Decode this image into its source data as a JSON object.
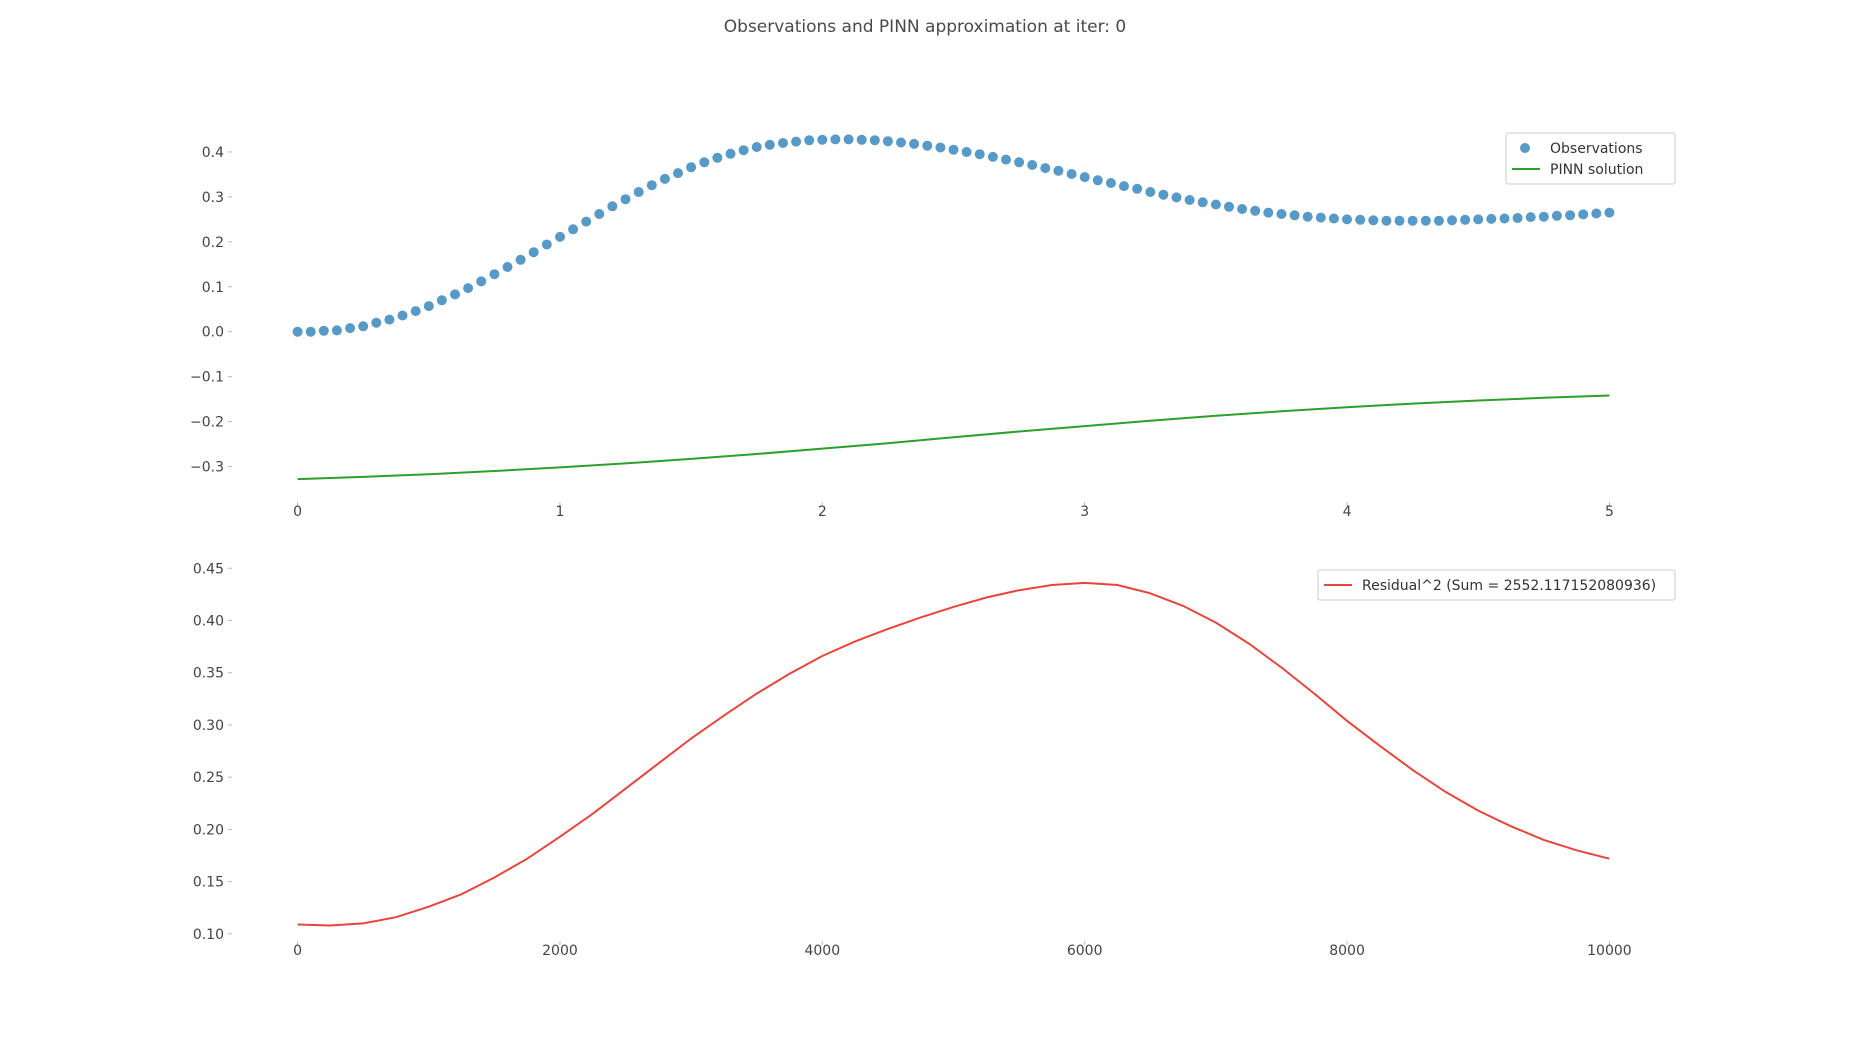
{
  "figure": {
    "suptitle": "Observations and PINN approximation at iter: 0"
  },
  "chart_data": [
    {
      "type": "scatter+line",
      "title": "",
      "xlabel": "",
      "ylabel": "",
      "xlim": [
        -0.25,
        5.25
      ],
      "ylim": [
        -0.37,
        0.46
      ],
      "grid": false,
      "legend_position": "top-right",
      "xticks": [
        0,
        1,
        2,
        3,
        4,
        5
      ],
      "yticks": [
        -0.3,
        -0.2,
        -0.1,
        0.0,
        0.1,
        0.2,
        0.3,
        0.4
      ],
      "ytick_decimals": 1,
      "series": [
        {
          "name": "Observations",
          "kind": "scatter",
          "color": "#1f77b4",
          "points": [
            [
              0.0,
              0.0
            ],
            [
              0.05,
              0.0
            ],
            [
              0.1,
              0.002
            ],
            [
              0.15,
              0.003
            ],
            [
              0.2,
              0.008
            ],
            [
              0.25,
              0.012
            ],
            [
              0.3,
              0.02
            ],
            [
              0.35,
              0.027
            ],
            [
              0.4,
              0.036
            ],
            [
              0.45,
              0.046
            ],
            [
              0.5,
              0.057
            ],
            [
              0.55,
              0.07
            ],
            [
              0.6,
              0.083
            ],
            [
              0.65,
              0.097
            ],
            [
              0.7,
              0.112
            ],
            [
              0.75,
              0.128
            ],
            [
              0.8,
              0.144
            ],
            [
              0.85,
              0.16
            ],
            [
              0.9,
              0.177
            ],
            [
              0.95,
              0.194
            ],
            [
              1.0,
              0.211
            ],
            [
              1.05,
              0.228
            ],
            [
              1.1,
              0.245
            ],
            [
              1.15,
              0.262
            ],
            [
              1.2,
              0.279
            ],
            [
              1.25,
              0.295
            ],
            [
              1.3,
              0.311
            ],
            [
              1.35,
              0.326
            ],
            [
              1.4,
              0.34
            ],
            [
              1.45,
              0.353
            ],
            [
              1.5,
              0.366
            ],
            [
              1.55,
              0.377
            ],
            [
              1.6,
              0.387
            ],
            [
              1.65,
              0.396
            ],
            [
              1.7,
              0.404
            ],
            [
              1.75,
              0.411
            ],
            [
              1.8,
              0.416
            ],
            [
              1.85,
              0.42
            ],
            [
              1.9,
              0.423
            ],
            [
              1.95,
              0.426
            ],
            [
              2.0,
              0.427
            ],
            [
              2.05,
              0.428
            ],
            [
              2.1,
              0.428
            ],
            [
              2.15,
              0.427
            ],
            [
              2.2,
              0.426
            ],
            [
              2.25,
              0.424
            ],
            [
              2.3,
              0.421
            ],
            [
              2.35,
              0.418
            ],
            [
              2.4,
              0.414
            ],
            [
              2.45,
              0.41
            ],
            [
              2.5,
              0.405
            ],
            [
              2.55,
              0.4
            ],
            [
              2.6,
              0.395
            ],
            [
              2.65,
              0.389
            ],
            [
              2.7,
              0.383
            ],
            [
              2.75,
              0.377
            ],
            [
              2.8,
              0.371
            ],
            [
              2.85,
              0.364
            ],
            [
              2.9,
              0.358
            ],
            [
              2.95,
              0.351
            ],
            [
              3.0,
              0.344
            ],
            [
              3.05,
              0.337
            ],
            [
              3.1,
              0.331
            ],
            [
              3.15,
              0.324
            ],
            [
              3.2,
              0.318
            ],
            [
              3.25,
              0.311
            ],
            [
              3.3,
              0.305
            ],
            [
              3.35,
              0.299
            ],
            [
              3.4,
              0.293
            ],
            [
              3.45,
              0.288
            ],
            [
              3.5,
              0.283
            ],
            [
              3.55,
              0.278
            ],
            [
              3.6,
              0.273
            ],
            [
              3.65,
              0.269
            ],
            [
              3.7,
              0.265
            ],
            [
              3.75,
              0.262
            ],
            [
              3.8,
              0.259
            ],
            [
              3.85,
              0.256
            ],
            [
              3.9,
              0.254
            ],
            [
              3.95,
              0.252
            ],
            [
              4.0,
              0.25
            ],
            [
              4.05,
              0.249
            ],
            [
              4.1,
              0.248
            ],
            [
              4.15,
              0.247
            ],
            [
              4.2,
              0.247
            ],
            [
              4.25,
              0.247
            ],
            [
              4.3,
              0.247
            ],
            [
              4.35,
              0.247
            ],
            [
              4.4,
              0.248
            ],
            [
              4.45,
              0.249
            ],
            [
              4.5,
              0.25
            ],
            [
              4.55,
              0.251
            ],
            [
              4.6,
              0.252
            ],
            [
              4.65,
              0.253
            ],
            [
              4.7,
              0.255
            ],
            [
              4.75,
              0.256
            ],
            [
              4.8,
              0.258
            ],
            [
              4.85,
              0.259
            ],
            [
              4.9,
              0.261
            ],
            [
              4.95,
              0.263
            ],
            [
              5.0,
              0.265
            ]
          ]
        },
        {
          "name": "PINN solution",
          "kind": "line",
          "color": "#2ca02c",
          "points": [
            [
              0.0,
              -0.328
            ],
            [
              0.25,
              -0.323
            ],
            [
              0.5,
              -0.317
            ],
            [
              0.75,
              -0.31
            ],
            [
              1.0,
              -0.302
            ],
            [
              1.25,
              -0.293
            ],
            [
              1.5,
              -0.283
            ],
            [
              1.75,
              -0.272
            ],
            [
              2.0,
              -0.26
            ],
            [
              2.25,
              -0.248
            ],
            [
              2.5,
              -0.235
            ],
            [
              2.75,
              -0.222
            ],
            [
              3.0,
              -0.21
            ],
            [
              3.25,
              -0.198
            ],
            [
              3.5,
              -0.187
            ],
            [
              3.75,
              -0.177
            ],
            [
              4.0,
              -0.168
            ],
            [
              4.25,
              -0.16
            ],
            [
              4.5,
              -0.153
            ],
            [
              4.75,
              -0.147
            ],
            [
              5.0,
              -0.142
            ]
          ]
        }
      ]
    },
    {
      "type": "line",
      "title": "",
      "xlabel": "",
      "ylabel": "",
      "xlim": [
        -500,
        10500
      ],
      "ylim": [
        0.097,
        0.456
      ],
      "grid": false,
      "legend_position": "top-right",
      "xticks": [
        0,
        2000,
        4000,
        6000,
        8000,
        10000
      ],
      "yticks": [
        0.1,
        0.15,
        0.2,
        0.25,
        0.3,
        0.35,
        0.4,
        0.45
      ],
      "ytick_decimals": 2,
      "series": [
        {
          "name": "Residual^2 (Sum = 2552.117152080936)",
          "kind": "line",
          "color": "#e8453c",
          "points": [
            [
              0,
              0.109
            ],
            [
              250,
              0.108
            ],
            [
              500,
              0.11
            ],
            [
              750,
              0.116
            ],
            [
              1000,
              0.126
            ],
            [
              1250,
              0.138
            ],
            [
              1500,
              0.154
            ],
            [
              1750,
              0.172
            ],
            [
              2000,
              0.193
            ],
            [
              2250,
              0.215
            ],
            [
              2500,
              0.239
            ],
            [
              2750,
              0.263
            ],
            [
              3000,
              0.287
            ],
            [
              3250,
              0.309
            ],
            [
              3500,
              0.33
            ],
            [
              3750,
              0.349
            ],
            [
              4000,
              0.366
            ],
            [
              4250,
              0.38
            ],
            [
              4500,
              0.392
            ],
            [
              4750,
              0.403
            ],
            [
              5000,
              0.413
            ],
            [
              5250,
              0.422
            ],
            [
              5500,
              0.429
            ],
            [
              5750,
              0.434
            ],
            [
              6000,
              0.436
            ],
            [
              6250,
              0.434
            ],
            [
              6500,
              0.426
            ],
            [
              6750,
              0.414
            ],
            [
              7000,
              0.398
            ],
            [
              7250,
              0.378
            ],
            [
              7500,
              0.355
            ],
            [
              7750,
              0.33
            ],
            [
              8000,
              0.304
            ],
            [
              8250,
              0.28
            ],
            [
              8500,
              0.257
            ],
            [
              8750,
              0.236
            ],
            [
              9000,
              0.218
            ],
            [
              9250,
              0.203
            ],
            [
              9500,
              0.19
            ],
            [
              9750,
              0.18
            ],
            [
              10000,
              0.172
            ]
          ]
        }
      ]
    }
  ]
}
